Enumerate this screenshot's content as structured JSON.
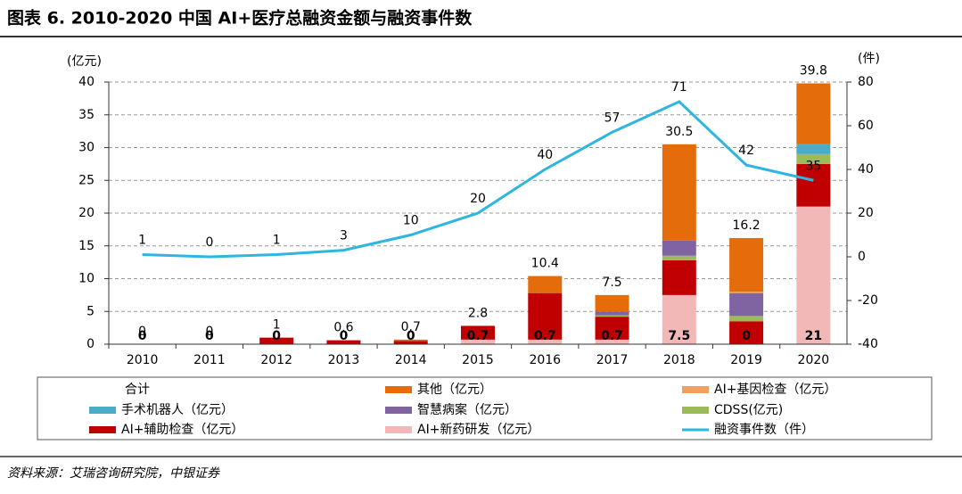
{
  "title": "图表 6. 2010-2020 中国 AI+医疗总融资金额与融资事件数",
  "source": "资料来源：艾瑞咨询研究院，中银证券",
  "chart_data": {
    "type": "bar",
    "categories": [
      "2010",
      "2011",
      "2012",
      "2013",
      "2014",
      "2015",
      "2016",
      "2017",
      "2018",
      "2019",
      "2020"
    ],
    "ylabel": "(亿元)",
    "y2label": "(件)",
    "ylim": [
      0,
      40
    ],
    "yticks": [
      0,
      5,
      10,
      15,
      20,
      25,
      30,
      35,
      40
    ],
    "y2lim": [
      -40,
      80
    ],
    "y2ticks": [
      -40,
      -20,
      0,
      20,
      40,
      60,
      80
    ],
    "grid": true,
    "stacked": true,
    "series": [
      {
        "name": "合计",
        "type": "label",
        "values": [
          0,
          0,
          1,
          0.6,
          0.7,
          2.8,
          10.4,
          7.5,
          30.5,
          16.2,
          39.8
        ]
      },
      {
        "name": "其他（亿元）",
        "type": "bar",
        "color": "#e46c0a",
        "values": [
          0,
          0,
          0,
          0,
          0.2,
          0,
          2.6,
          2.5,
          14.7,
          8.2,
          9.3
        ]
      },
      {
        "name": "AI+基因检查（亿元）",
        "type": "bar",
        "color": "#f0a060",
        "values": [
          0,
          0,
          0,
          0,
          0,
          0,
          0,
          0,
          0,
          0.2,
          0
        ]
      },
      {
        "name": "手术机器人（亿元）",
        "type": "bar",
        "color": "#4bacc6",
        "values": [
          0,
          0,
          0,
          0,
          0,
          0,
          0,
          0,
          0,
          0,
          1.5
        ]
      },
      {
        "name": "智慧病案（亿元）",
        "type": "bar",
        "color": "#8064a2",
        "values": [
          0,
          0,
          0,
          0,
          0,
          0,
          0,
          0.6,
          2.3,
          3.5,
          0
        ]
      },
      {
        "name": "CDSS(亿元)",
        "type": "bar",
        "color": "#9bbb59",
        "values": [
          0,
          0,
          0,
          0,
          0,
          0,
          0,
          0.2,
          0.7,
          0.8,
          1.5
        ]
      },
      {
        "name": "AI+辅助检查（亿元）",
        "type": "bar",
        "color": "#c00000",
        "values": [
          0,
          0,
          1,
          0.6,
          0.5,
          2.1,
          7.1,
          3.5,
          5.3,
          3.5,
          6.5
        ]
      },
      {
        "name": "AI+新药研发（亿元）",
        "type": "bar",
        "color": "#f2b8b8",
        "labels": true,
        "values": [
          0,
          0,
          0,
          0,
          0,
          0.7,
          0.7,
          0.7,
          7.5,
          0,
          21
        ]
      },
      {
        "name": "融资事件数（件）",
        "type": "line",
        "axis": "y2",
        "color": "#2eb5e0",
        "labels": true,
        "values": [
          1,
          0,
          1,
          3,
          10,
          20,
          40,
          57,
          71,
          42,
          35
        ]
      }
    ]
  }
}
